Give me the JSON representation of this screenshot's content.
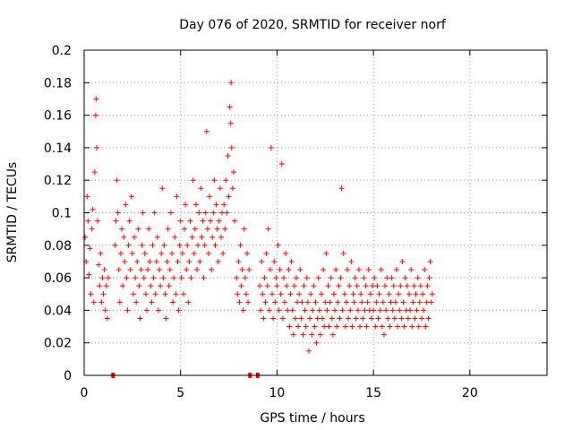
{
  "chart_data": {
    "type": "scatter",
    "title": "Day 076 of 2020, SRMTID for receiver norf",
    "xlabel": "GPS time / hours",
    "ylabel": "SRMTID / TECUs",
    "xlim": [
      0,
      24
    ],
    "ylim": [
      0,
      0.2
    ],
    "x_ticks": [
      0,
      5,
      10,
      15,
      20
    ],
    "x_tick_labels": [
      "0",
      "5",
      "10",
      "15",
      "20"
    ],
    "y_ticks": [
      0,
      0.02,
      0.04,
      0.06,
      0.08,
      0.1,
      0.12,
      0.14,
      0.16,
      0.18,
      0.2
    ],
    "y_tick_labels": [
      "0",
      "0.02",
      "0.04",
      "0.06",
      "0.08",
      "0.1",
      "0.12",
      "0.14",
      "0.16",
      "0.18",
      "0.2"
    ],
    "grid": true,
    "marker": "plus",
    "series_color": "#ff0000",
    "gap_markers_x": [
      1.5,
      8.6,
      9.0
    ],
    "points": [
      [
        0.05,
        0.085
      ],
      [
        0.1,
        0.07
      ],
      [
        0.15,
        0.11
      ],
      [
        0.2,
        0.095
      ],
      [
        0.25,
        0.062
      ],
      [
        0.3,
        0.078
      ],
      [
        0.35,
        0.05
      ],
      [
        0.4,
        0.09
      ],
      [
        0.45,
        0.102
      ],
      [
        0.5,
        0.045
      ],
      [
        0.55,
        0.125
      ],
      [
        0.6,
        0.16
      ],
      [
        0.62,
        0.17
      ],
      [
        0.65,
        0.14
      ],
      [
        0.7,
        0.095
      ],
      [
        0.75,
        0.068
      ],
      [
        0.8,
        0.055
      ],
      [
        0.85,
        0.075
      ],
      [
        0.9,
        0.045
      ],
      [
        0.95,
        0.06
      ],
      [
        1.0,
        0.05
      ],
      [
        1.05,
        0.065
      ],
      [
        1.1,
        0.04
      ],
      [
        1.15,
        0.055
      ],
      [
        1.2,
        0.035
      ],
      [
        1.25,
        0.06
      ],
      [
        1.6,
        0.08
      ],
      [
        1.65,
        0.095
      ],
      [
        1.7,
        0.12
      ],
      [
        1.75,
        0.1
      ],
      [
        1.8,
        0.065
      ],
      [
        1.85,
        0.045
      ],
      [
        1.9,
        0.075
      ],
      [
        1.95,
        0.09
      ],
      [
        2.0,
        0.055
      ],
      [
        2.05,
        0.085
      ],
      [
        2.1,
        0.07
      ],
      [
        2.15,
        0.105
      ],
      [
        2.2,
        0.06
      ],
      [
        2.25,
        0.04
      ],
      [
        2.3,
        0.08
      ],
      [
        2.35,
        0.095
      ],
      [
        2.4,
        0.065
      ],
      [
        2.45,
        0.11
      ],
      [
        2.5,
        0.075
      ],
      [
        2.55,
        0.05
      ],
      [
        2.6,
        0.085
      ],
      [
        2.65,
        0.06
      ],
      [
        2.7,
        0.045
      ],
      [
        2.75,
        0.07
      ],
      [
        2.8,
        0.09
      ],
      [
        2.85,
        0.055
      ],
      [
        2.9,
        0.035
      ],
      [
        2.95,
        0.065
      ],
      [
        3.0,
        0.08
      ],
      [
        3.05,
        0.1
      ],
      [
        3.1,
        0.06
      ],
      [
        3.15,
        0.075
      ],
      [
        3.2,
        0.05
      ],
      [
        3.25,
        0.04
      ],
      [
        3.3,
        0.065
      ],
      [
        3.35,
        0.09
      ],
      [
        3.4,
        0.07
      ],
      [
        3.45,
        0.055
      ],
      [
        3.5,
        0.045
      ],
      [
        3.55,
        0.08
      ],
      [
        3.6,
        0.06
      ],
      [
        3.65,
        0.1
      ],
      [
        3.7,
        0.05
      ],
      [
        3.75,
        0.07
      ],
      [
        3.8,
        0.085
      ],
      [
        3.85,
        0.04
      ],
      [
        3.9,
        0.065
      ],
      [
        3.95,
        0.055
      ],
      [
        4.0,
        0.075
      ],
      [
        4.05,
        0.115
      ],
      [
        4.1,
        0.06
      ],
      [
        4.15,
        0.08
      ],
      [
        4.2,
        0.05
      ],
      [
        4.25,
        0.035
      ],
      [
        4.3,
        0.07
      ],
      [
        4.35,
        0.09
      ],
      [
        4.4,
        0.055
      ],
      [
        4.45,
        0.065
      ],
      [
        4.5,
        0.1
      ],
      [
        4.55,
        0.075
      ],
      [
        4.6,
        0.045
      ],
      [
        4.65,
        0.06
      ],
      [
        4.7,
        0.085
      ],
      [
        4.75,
        0.05
      ],
      [
        4.8,
        0.11
      ],
      [
        4.85,
        0.07
      ],
      [
        4.9,
        0.04
      ],
      [
        4.95,
        0.08
      ],
      [
        5.0,
        0.095
      ],
      [
        5.05,
        0.06
      ],
      [
        5.1,
        0.075
      ],
      [
        5.15,
        0.05
      ],
      [
        5.2,
        0.09
      ],
      [
        5.25,
        0.105
      ],
      [
        5.3,
        0.065
      ],
      [
        5.35,
        0.08
      ],
      [
        5.4,
        0.045
      ],
      [
        5.45,
        0.07
      ],
      [
        5.5,
        0.095
      ],
      [
        5.55,
        0.06
      ],
      [
        5.6,
        0.085
      ],
      [
        5.65,
        0.12
      ],
      [
        5.7,
        0.075
      ],
      [
        5.75,
        0.09
      ],
      [
        5.8,
        0.105
      ],
      [
        5.85,
        0.065
      ],
      [
        5.9,
        0.08
      ],
      [
        5.95,
        0.1
      ],
      [
        6.0,
        0.07
      ],
      [
        6.05,
        0.115
      ],
      [
        6.1,
        0.085
      ],
      [
        6.15,
        0.095
      ],
      [
        6.2,
        0.06
      ],
      [
        6.25,
        0.08
      ],
      [
        6.3,
        0.1
      ],
      [
        6.35,
        0.15
      ],
      [
        6.4,
        0.09
      ],
      [
        6.45,
        0.075
      ],
      [
        6.5,
        0.11
      ],
      [
        6.55,
        0.095
      ],
      [
        6.6,
        0.065
      ],
      [
        6.65,
        0.085
      ],
      [
        6.7,
        0.1
      ],
      [
        6.75,
        0.12
      ],
      [
        6.8,
        0.08
      ],
      [
        6.85,
        0.105
      ],
      [
        6.9,
        0.09
      ],
      [
        6.95,
        0.07
      ],
      [
        7.0,
        0.095
      ],
      [
        7.05,
        0.115
      ],
      [
        7.1,
        0.085
      ],
      [
        7.15,
        0.1
      ],
      [
        7.2,
        0.075
      ],
      [
        7.25,
        0.105
      ],
      [
        7.3,
        0.09
      ],
      [
        7.35,
        0.12
      ],
      [
        7.4,
        0.1
      ],
      [
        7.45,
        0.135
      ],
      [
        7.5,
        0.11
      ],
      [
        7.55,
        0.165
      ],
      [
        7.6,
        0.155
      ],
      [
        7.62,
        0.18
      ],
      [
        7.65,
        0.14
      ],
      [
        7.7,
        0.115
      ],
      [
        7.75,
        0.125
      ],
      [
        7.8,
        0.095
      ],
      [
        7.9,
        0.06
      ],
      [
        7.95,
        0.05
      ],
      [
        8.0,
        0.07
      ],
      [
        8.05,
        0.045
      ],
      [
        8.1,
        0.08
      ],
      [
        8.15,
        0.055
      ],
      [
        8.2,
        0.065
      ],
      [
        8.25,
        0.04
      ],
      [
        8.3,
        0.09
      ],
      [
        8.35,
        0.06
      ],
      [
        8.4,
        0.05
      ],
      [
        8.45,
        0.075
      ],
      [
        8.5,
        0.045
      ],
      [
        8.55,
        0.065
      ],
      [
        9.1,
        0.055
      ],
      [
        9.15,
        0.04
      ],
      [
        9.2,
        0.07
      ],
      [
        9.25,
        0.05
      ],
      [
        9.3,
        0.035
      ],
      [
        9.35,
        0.06
      ],
      [
        9.4,
        0.045
      ],
      [
        9.45,
        0.075
      ],
      [
        9.5,
        0.055
      ],
      [
        9.55,
        0.09
      ],
      [
        9.6,
        0.04
      ],
      [
        9.65,
        0.065
      ],
      [
        9.7,
        0.14
      ],
      [
        9.75,
        0.05
      ],
      [
        9.8,
        0.035
      ],
      [
        9.85,
        0.07
      ],
      [
        9.9,
        0.045
      ],
      [
        9.95,
        0.06
      ],
      [
        10.0,
        0.055
      ],
      [
        10.05,
        0.08
      ],
      [
        10.1,
        0.04
      ],
      [
        10.15,
        0.065
      ],
      [
        10.2,
        0.05
      ],
      [
        10.25,
        0.13
      ],
      [
        10.3,
        0.035
      ],
      [
        10.35,
        0.06
      ],
      [
        10.4,
        0.045
      ],
      [
        10.45,
        0.075
      ],
      [
        10.5,
        0.055
      ],
      [
        10.55,
        0.04
      ],
      [
        10.6,
        0.065
      ],
      [
        10.65,
        0.03
      ],
      [
        10.7,
        0.05
      ],
      [
        10.75,
        0.07
      ],
      [
        10.8,
        0.04
      ],
      [
        10.85,
        0.025
      ],
      [
        10.9,
        0.055
      ],
      [
        10.95,
        0.035
      ],
      [
        11.0,
        0.06
      ],
      [
        11.05,
        0.045
      ],
      [
        11.1,
        0.03
      ],
      [
        11.15,
        0.05
      ],
      [
        11.2,
        0.065
      ],
      [
        11.25,
        0.035
      ],
      [
        11.3,
        0.045
      ],
      [
        11.35,
        0.025
      ],
      [
        11.4,
        0.055
      ],
      [
        11.45,
        0.04
      ],
      [
        11.5,
        0.03
      ],
      [
        11.55,
        0.06
      ],
      [
        11.6,
        0.045
      ],
      [
        11.65,
        0.015
      ],
      [
        11.7,
        0.035
      ],
      [
        11.75,
        0.05
      ],
      [
        11.8,
        0.025
      ],
      [
        11.85,
        0.04
      ],
      [
        11.9,
        0.055
      ],
      [
        11.95,
        0.03
      ],
      [
        12.0,
        0.045
      ],
      [
        12.05,
        0.02
      ],
      [
        12.1,
        0.035
      ],
      [
        12.15,
        0.06
      ],
      [
        12.2,
        0.04
      ],
      [
        12.25,
        0.025
      ],
      [
        12.3,
        0.05
      ],
      [
        12.35,
        0.035
      ],
      [
        12.4,
        0.065
      ],
      [
        12.45,
        0.03
      ],
      [
        12.5,
        0.045
      ],
      [
        12.55,
        0.075
      ],
      [
        12.6,
        0.04
      ],
      [
        12.65,
        0.055
      ],
      [
        12.7,
        0.03
      ],
      [
        12.75,
        0.045
      ],
      [
        12.8,
        0.06
      ],
      [
        12.85,
        0.035
      ],
      [
        12.9,
        0.025
      ],
      [
        12.95,
        0.05
      ],
      [
        13.0,
        0.04
      ],
      [
        13.05,
        0.065
      ],
      [
        13.1,
        0.03
      ],
      [
        13.15,
        0.045
      ],
      [
        13.2,
        0.055
      ],
      [
        13.25,
        0.035
      ],
      [
        13.3,
        0.06
      ],
      [
        13.35,
        0.115
      ],
      [
        13.4,
        0.04
      ],
      [
        13.45,
        0.075
      ],
      [
        13.5,
        0.05
      ],
      [
        13.55,
        0.03
      ],
      [
        13.6,
        0.045
      ],
      [
        13.65,
        0.065
      ],
      [
        13.7,
        0.035
      ],
      [
        13.75,
        0.055
      ],
      [
        13.8,
        0.04
      ],
      [
        13.85,
        0.07
      ],
      [
        13.9,
        0.03
      ],
      [
        13.95,
        0.05
      ],
      [
        14.0,
        0.045
      ],
      [
        14.05,
        0.06
      ],
      [
        14.1,
        0.035
      ],
      [
        14.15,
        0.055
      ],
      [
        14.2,
        0.04
      ],
      [
        14.25,
        0.065
      ],
      [
        14.3,
        0.03
      ],
      [
        14.35,
        0.05
      ],
      [
        14.4,
        0.045
      ],
      [
        14.45,
        0.035
      ],
      [
        14.5,
        0.06
      ],
      [
        14.55,
        0.04
      ],
      [
        14.6,
        0.055
      ],
      [
        14.65,
        0.03
      ],
      [
        14.7,
        0.045
      ],
      [
        14.75,
        0.065
      ],
      [
        14.8,
        0.04
      ],
      [
        14.85,
        0.05
      ],
      [
        14.9,
        0.035
      ],
      [
        14.95,
        0.055
      ],
      [
        15.0,
        0.04
      ],
      [
        15.05,
        0.06
      ],
      [
        15.1,
        0.03
      ],
      [
        15.15,
        0.045
      ],
      [
        15.2,
        0.055
      ],
      [
        15.25,
        0.035
      ],
      [
        15.3,
        0.05
      ],
      [
        15.35,
        0.04
      ],
      [
        15.4,
        0.065
      ],
      [
        15.45,
        0.03
      ],
      [
        15.5,
        0.045
      ],
      [
        15.55,
        0.025
      ],
      [
        15.6,
        0.055
      ],
      [
        15.65,
        0.04
      ],
      [
        15.7,
        0.06
      ],
      [
        15.75,
        0.035
      ],
      [
        15.8,
        0.05
      ],
      [
        15.85,
        0.03
      ],
      [
        15.9,
        0.045
      ],
      [
        15.95,
        0.06
      ],
      [
        16.0,
        0.04
      ],
      [
        16.05,
        0.055
      ],
      [
        16.1,
        0.035
      ],
      [
        16.15,
        0.045
      ],
      [
        16.2,
        0.065
      ],
      [
        16.25,
        0.03
      ],
      [
        16.3,
        0.05
      ],
      [
        16.35,
        0.04
      ],
      [
        16.4,
        0.055
      ],
      [
        16.45,
        0.035
      ],
      [
        16.5,
        0.07
      ],
      [
        16.55,
        0.045
      ],
      [
        16.6,
        0.03
      ],
      [
        16.65,
        0.06
      ],
      [
        16.7,
        0.04
      ],
      [
        16.75,
        0.055
      ],
      [
        16.8,
        0.035
      ],
      [
        16.85,
        0.05
      ],
      [
        16.9,
        0.04
      ],
      [
        16.95,
        0.065
      ],
      [
        17.0,
        0.03
      ],
      [
        17.05,
        0.045
      ],
      [
        17.1,
        0.055
      ],
      [
        17.15,
        0.035
      ],
      [
        17.2,
        0.05
      ],
      [
        17.25,
        0.04
      ],
      [
        17.3,
        0.06
      ],
      [
        17.35,
        0.03
      ],
      [
        17.4,
        0.045
      ],
      [
        17.45,
        0.055
      ],
      [
        17.5,
        0.035
      ],
      [
        17.55,
        0.05
      ],
      [
        17.6,
        0.04
      ],
      [
        17.65,
        0.065
      ],
      [
        17.7,
        0.03
      ],
      [
        17.75,
        0.045
      ],
      [
        17.8,
        0.055
      ],
      [
        17.85,
        0.035
      ],
      [
        17.9,
        0.06
      ],
      [
        17.95,
        0.07
      ],
      [
        18.0,
        0.045
      ],
      [
        18.05,
        0.05
      ]
    ]
  }
}
